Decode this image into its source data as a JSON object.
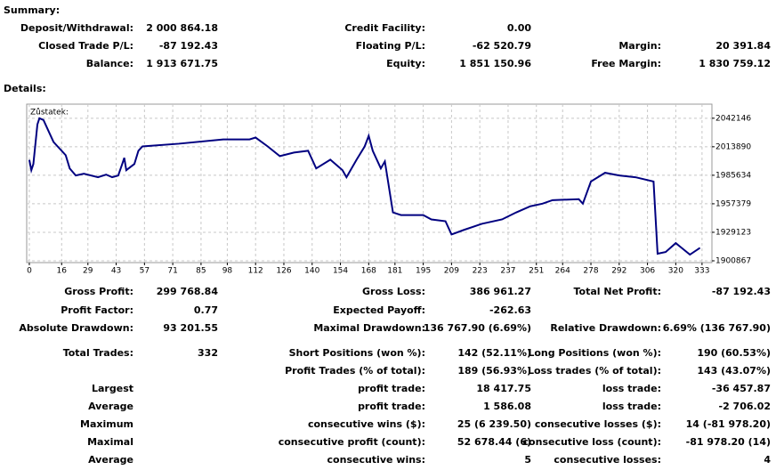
{
  "summary": {
    "title": "Summary:",
    "rows": [
      [
        {
          "label": "Deposit/Withdrawal:",
          "value": "2 000 864.18"
        },
        {
          "label": "Credit Facility:",
          "value": "0.00"
        },
        null
      ],
      [
        {
          "label": "Closed Trade P/L:",
          "value": "-87 192.43"
        },
        {
          "label": "Floating P/L:",
          "value": "-62 520.79"
        },
        {
          "label": "Margin:",
          "value": "20 391.84"
        }
      ],
      [
        {
          "label": "Balance:",
          "value": "1 913 671.75"
        },
        {
          "label": "Equity:",
          "value": "1 851 150.96"
        },
        {
          "label": "Free Margin:",
          "value": "1 830 759.12"
        }
      ]
    ]
  },
  "details": {
    "title": "Details:",
    "rows": [
      [
        {
          "label": "Gross Profit:",
          "value": "299 768.84"
        },
        {
          "label": "Gross Loss:",
          "value": "386 961.27"
        },
        {
          "label": "Total Net Profit:",
          "value": "-87 192.43"
        }
      ],
      [
        {
          "label": "Profit Factor:",
          "value": "0.77"
        },
        {
          "label": "Expected Payoff:",
          "value": "-262.63"
        },
        null
      ],
      [
        {
          "label": "Absolute Drawdown:",
          "value": "93 201.55"
        },
        {
          "label": "Maximal Drawdown:",
          "value": "136 767.90 (6.69%)"
        },
        {
          "label": "Relative Drawdown:",
          "value": "6.69% (136 767.90)"
        }
      ],
      [
        {
          "label": "Total Trades:",
          "value": "332"
        },
        {
          "label": "Short Positions (won %):",
          "value": "142 (52.11%)"
        },
        {
          "label": "Long Positions (won %):",
          "value": "190 (60.53%)"
        }
      ],
      [
        null,
        {
          "label": "Profit Trades (% of total):",
          "value": "189 (56.93%)"
        },
        {
          "label": "Loss trades (% of total):",
          "value": "143 (43.07%)"
        }
      ],
      [
        {
          "label": "Largest"
        },
        {
          "label": "profit trade:",
          "value": "18 417.75"
        },
        {
          "label": "loss trade:",
          "value": "-36 457.87"
        }
      ],
      [
        {
          "label": "Average"
        },
        {
          "label": "profit trade:",
          "value": "1 586.08"
        },
        {
          "label": "loss trade:",
          "value": "-2 706.02"
        }
      ],
      [
        {
          "label": "Maximum"
        },
        {
          "label": "consecutive wins ($):",
          "value": "25 (6 239.50)"
        },
        {
          "label": "consecutive losses ($):",
          "value": "14 (-81 978.20)"
        }
      ],
      [
        {
          "label": "Maximal"
        },
        {
          "label": "consecutive profit (count):",
          "value": "52 678.44 (6)"
        },
        {
          "label": "consecutive loss (count):",
          "value": "-81 978.20 (14)"
        }
      ],
      [
        {
          "label": "Average"
        },
        {
          "label": "consecutive wins:",
          "value": "5"
        },
        {
          "label": "consecutive losses:",
          "value": "4"
        }
      ]
    ]
  },
  "chart_data": {
    "type": "line",
    "title": "Zůstatek:",
    "x": [
      0,
      1,
      2,
      4,
      5,
      7,
      10,
      12,
      14,
      16,
      18,
      20,
      23,
      27,
      34,
      38,
      41,
      44,
      46,
      47,
      48,
      52,
      54,
      56,
      74,
      96,
      109,
      112,
      118,
      124,
      131,
      138,
      142,
      149,
      155,
      157,
      162,
      166,
      168,
      170,
      174,
      176,
      180,
      184,
      195,
      199,
      206,
      209,
      215,
      224,
      234,
      241,
      248,
      254,
      259,
      272,
      274,
      278,
      285,
      292,
      300,
      309,
      311,
      315,
      320,
      327,
      332
    ],
    "series": [
      {
        "name": "Zůstatek",
        "color": "#000080",
        "values": [
          2000864,
          1990700,
          1996800,
          2036000,
          2042100,
          2040400,
          2027300,
          2018600,
          2014200,
          2009900,
          2005500,
          1992400,
          1985400,
          1987200,
          1983700,
          1986300,
          1983700,
          1985400,
          1996800,
          2002900,
          1990700,
          1996800,
          2009900,
          2014200,
          2016900,
          2021200,
          2021200,
          2023000,
          2014200,
          2004600,
          2008100,
          2009900,
          1992400,
          2001100,
          1990700,
          1983700,
          2001100,
          2014200,
          2024700,
          2009900,
          1992400,
          1999400,
          1948800,
          1946200,
          1946200,
          1941900,
          1940100,
          1927000,
          1931400,
          1937500,
          1941900,
          1948800,
          1954900,
          1957500,
          1961000,
          1961900,
          1957500,
          1979400,
          1988100,
          1985400,
          1983700,
          1979400,
          1907900,
          1909600,
          1918400,
          1907000,
          1913672
        ]
      }
    ],
    "xlim": [
      -1.3,
      337.9
    ],
    "ylim": [
      1899100,
      2056100
    ],
    "xticks": [
      0,
      16,
      29,
      43,
      57,
      71,
      85,
      98,
      112,
      126,
      140,
      154,
      168,
      181,
      195,
      209,
      223,
      237,
      251,
      264,
      278,
      292,
      306,
      320,
      333
    ],
    "yticks": [
      1900867,
      1929123,
      1957379,
      1985634,
      2013890,
      2042146
    ],
    "grid": true
  }
}
